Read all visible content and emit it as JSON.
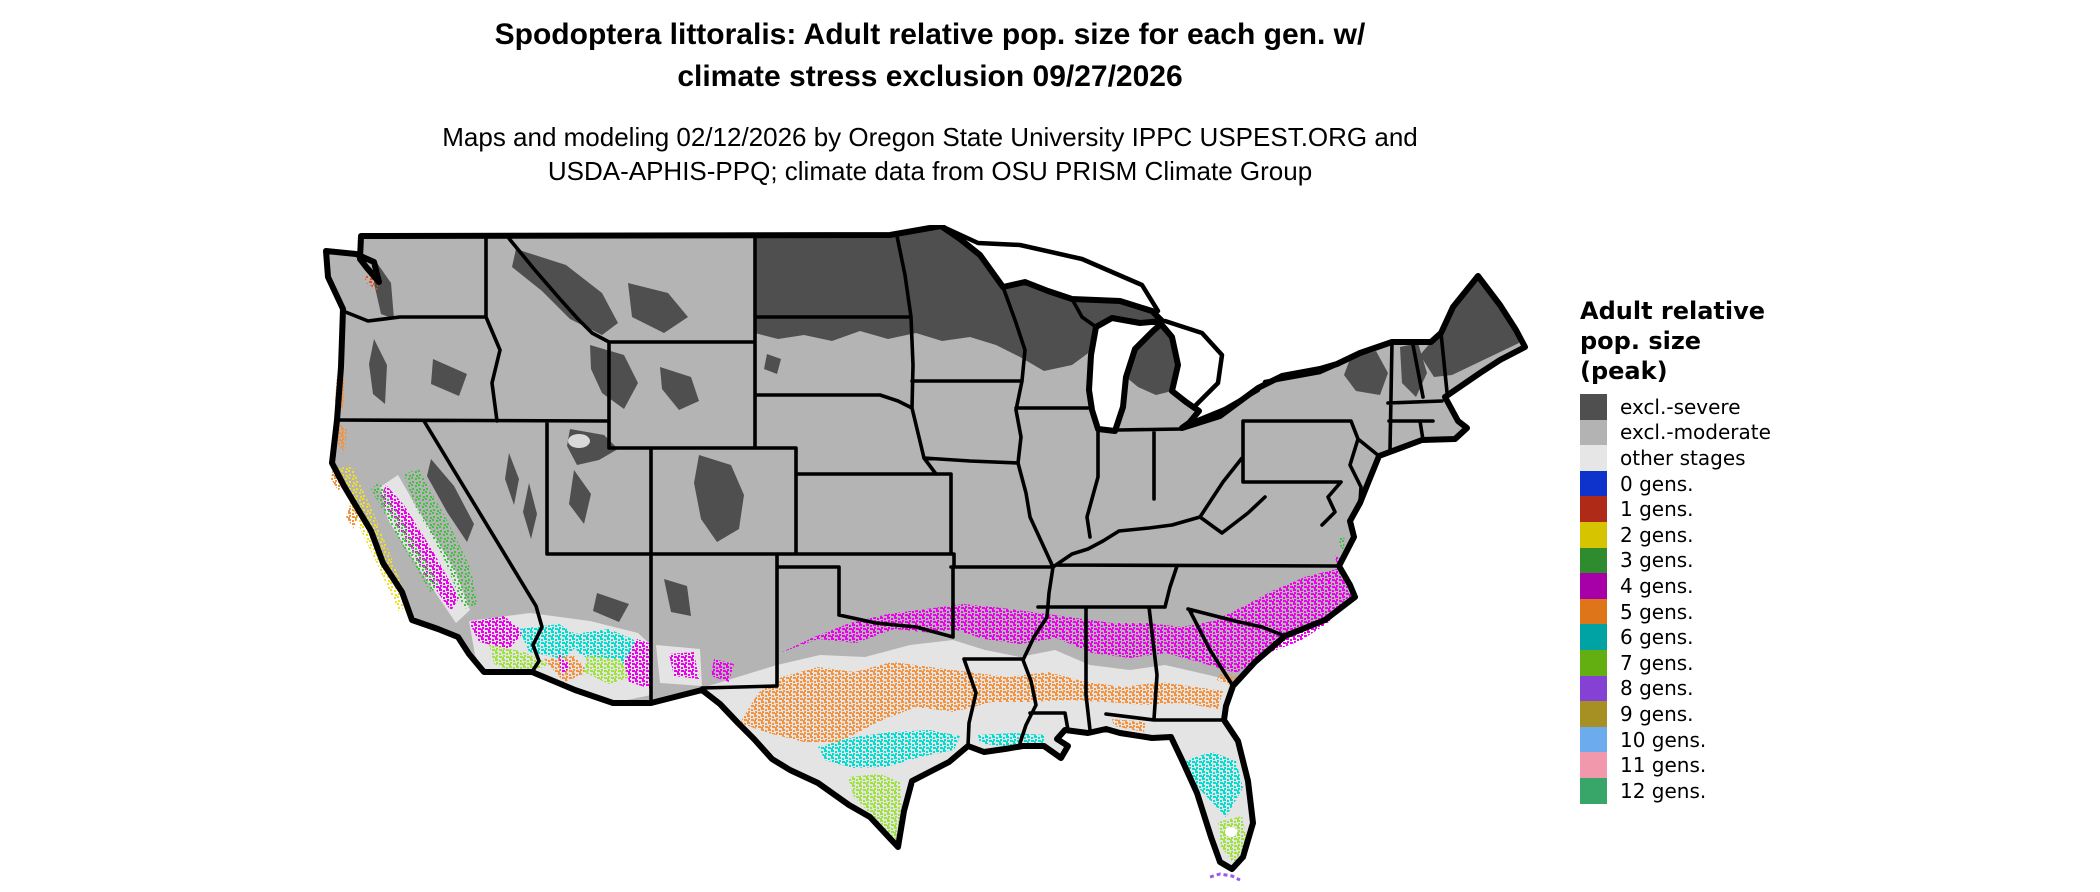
{
  "header": {
    "title_line1": "Spodoptera littoralis: Adult relative pop. size for each gen. w/",
    "title_line2": "climate stress exclusion 09/27/2026",
    "subtitle_line1": "Maps and modeling 02/12/2026 by Oregon State University IPPC USPEST.ORG and",
    "subtitle_line2": "USDA-APHIS-PPQ; climate data from OSU PRISM Climate Group"
  },
  "legend": {
    "title_lines": [
      "Adult relative",
      "pop. size",
      "(peak)"
    ],
    "items": [
      {
        "label": "excl.-severe",
        "color": "#4f4f4f"
      },
      {
        "label": "excl.-moderate",
        "color": "#b3b3b3"
      },
      {
        "label": "other stages",
        "color": "#e6e6e6"
      },
      {
        "label": "0 gens.",
        "color": "#0d33cc"
      },
      {
        "label": "1 gens.",
        "color": "#b02a18"
      },
      {
        "label": "2 gens.",
        "color": "#d6c400"
      },
      {
        "label": "3 gens.",
        "color": "#2e8b2e"
      },
      {
        "label": "4 gens.",
        "color": "#a800a8"
      },
      {
        "label": "5 gens.",
        "color": "#de7519"
      },
      {
        "label": "6 gens.",
        "color": "#00a3a3"
      },
      {
        "label": "7 gens.",
        "color": "#63ae10"
      },
      {
        "label": "8 gens.",
        "color": "#8540d4"
      },
      {
        "label": "9 gens.",
        "color": "#a68f23"
      },
      {
        "label": "10 gens.",
        "color": "#6dabef"
      },
      {
        "label": "11 gens.",
        "color": "#f198ad"
      },
      {
        "label": "12 gens.",
        "color": "#38a569"
      }
    ]
  },
  "map": {
    "palette": {
      "severe": "#4f4f4f",
      "moderate": "#b4b4b4",
      "other_stages": "#e4e4e4",
      "band_4_gens": "#ee00ee",
      "band_5_gens": "#f5923e",
      "band_6_gens": "#00ded2",
      "band_7_gens": "#9ee33b",
      "speckle_3_gens": "#44c044",
      "speckle_2_gens": "#f0e020",
      "speckle_1_gens": "#e8501c",
      "speckle_8_gens": "#9a5ce6",
      "water": "#ffffff"
    }
  }
}
